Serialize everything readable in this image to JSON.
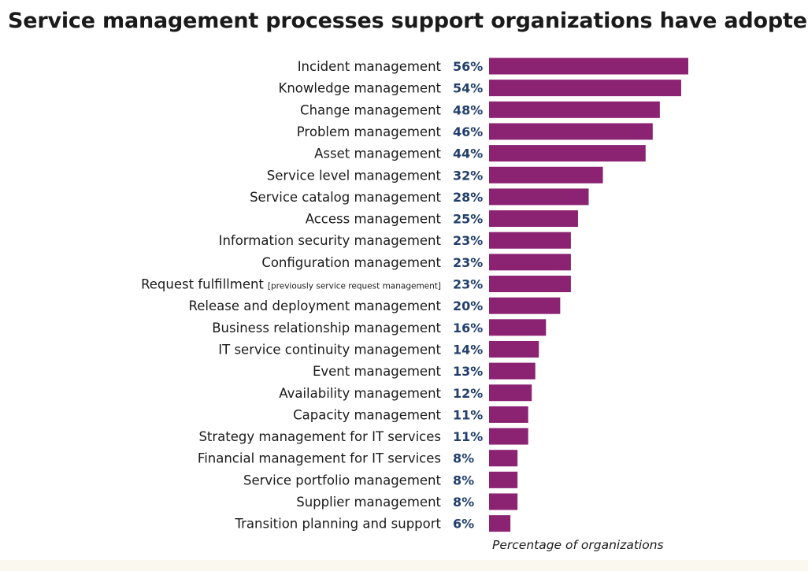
{
  "chart_data": {
    "type": "bar",
    "orientation": "horizontal",
    "title": "Service management processes support organizations have adopted:",
    "xlabel": "Percentage of organizations",
    "ylabel": "",
    "xlim": [
      0,
      56
    ],
    "grid": false,
    "legend": "none",
    "bar_color": "#8b2272",
    "value_color": "#223f6b",
    "value_suffix": "%",
    "categories": [
      {
        "label": "Incident management",
        "note": ""
      },
      {
        "label": "Knowledge management",
        "note": ""
      },
      {
        "label": "Change management",
        "note": ""
      },
      {
        "label": "Problem management",
        "note": ""
      },
      {
        "label": "Asset management",
        "note": ""
      },
      {
        "label": "Service level management",
        "note": ""
      },
      {
        "label": "Service catalog management",
        "note": ""
      },
      {
        "label": "Access management",
        "note": ""
      },
      {
        "label": "Information security management",
        "note": ""
      },
      {
        "label": "Configuration management",
        "note": ""
      },
      {
        "label": "Request fulfillment",
        "note": "[previously service request management]"
      },
      {
        "label": "Release and deployment management",
        "note": ""
      },
      {
        "label": "Business relationship management",
        "note": ""
      },
      {
        "label": "IT service continuity management",
        "note": ""
      },
      {
        "label": "Event management",
        "note": ""
      },
      {
        "label": "Availability management",
        "note": ""
      },
      {
        "label": "Capacity management",
        "note": ""
      },
      {
        "label": "Strategy management for IT services",
        "note": ""
      },
      {
        "label": "Financial management for IT services",
        "note": ""
      },
      {
        "label": "Service portfolio management",
        "note": ""
      },
      {
        "label": "Supplier management",
        "note": ""
      },
      {
        "label": "Transition planning and support",
        "note": ""
      }
    ],
    "values": [
      56,
      54,
      48,
      46,
      44,
      32,
      28,
      25,
      23,
      23,
      23,
      20,
      16,
      14,
      13,
      12,
      11,
      11,
      8,
      8,
      8,
      6
    ]
  }
}
